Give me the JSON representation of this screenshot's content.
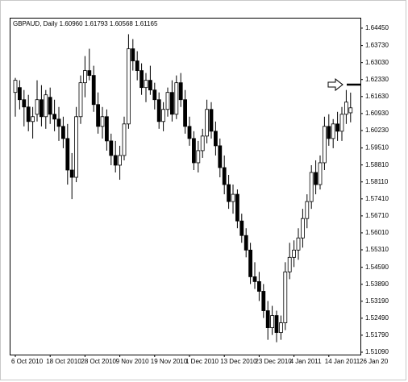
{
  "chart_data": {
    "type": "candlestick",
    "title": "GBPAUD, Daily 1.60960 1.61793 1.60568 1.61165",
    "categories": [
      "6 Oct 2010",
      null,
      null,
      null,
      null,
      null,
      null,
      null,
      "18 Oct 2010",
      null,
      null,
      null,
      null,
      null,
      null,
      null,
      "28 Oct 2010",
      null,
      null,
      null,
      null,
      null,
      null,
      null,
      "9 Nov 2010",
      null,
      null,
      null,
      null,
      null,
      null,
      null,
      "19 Nov 2010",
      null,
      null,
      null,
      null,
      null,
      null,
      null,
      "1 Dec 2010",
      null,
      null,
      null,
      null,
      null,
      null,
      null,
      "13 Dec 2010",
      null,
      null,
      null,
      null,
      null,
      null,
      null,
      "23 Dec 2010",
      null,
      null,
      null,
      null,
      null,
      null,
      null,
      "4 Jan 2011",
      null,
      null,
      null,
      null,
      null,
      null,
      null,
      "14 Jan 2011",
      null,
      null,
      null,
      null,
      null,
      null,
      null,
      "26 Jan 20"
    ],
    "open": [
      1.618,
      1.62,
      1.615,
      1.612,
      1.606,
      1.609,
      1.615,
      1.608,
      1.616,
      1.609,
      1.607,
      1.604,
      1.599,
      1.586,
      1.583,
      1.608,
      1.622,
      1.627,
      1.625,
      1.613,
      1.604,
      1.608,
      1.598,
      1.592,
      1.588,
      1.592,
      1.605,
      1.636,
      1.631,
      1.627,
      1.62,
      1.623,
      1.619,
      1.615,
      1.606,
      1.611,
      1.618,
      1.609,
      1.622,
      1.615,
      1.604,
      1.599,
      1.589,
      1.594,
      1.6,
      1.611,
      1.602,
      1.596,
      1.587,
      1.58,
      1.573,
      1.576,
      1.565,
      1.559,
      1.553,
      1.542,
      1.54,
      1.536,
      1.528,
      1.521,
      1.526,
      1.519,
      1.523,
      1.544,
      1.55,
      1.553,
      1.558,
      1.566,
      1.573,
      1.585,
      1.58,
      1.589,
      1.604,
      1.599,
      1.605,
      1.602,
      1.609,
      1.6096,
      null,
      null,
      null
    ],
    "high": [
      1.624,
      1.623,
      1.619,
      1.617,
      1.612,
      1.623,
      1.621,
      1.619,
      1.62,
      1.615,
      1.612,
      1.608,
      1.605,
      1.593,
      1.612,
      1.625,
      1.633,
      1.636,
      1.629,
      1.618,
      1.612,
      1.611,
      1.601,
      1.598,
      1.596,
      1.608,
      1.642,
      1.64,
      1.635,
      1.63,
      1.626,
      1.629,
      1.622,
      1.618,
      1.614,
      1.62,
      1.623,
      1.625,
      1.626,
      1.619,
      1.608,
      1.602,
      1.598,
      1.603,
      1.615,
      1.614,
      1.606,
      1.599,
      1.592,
      1.584,
      1.58,
      1.578,
      1.568,
      1.562,
      1.556,
      1.548,
      1.544,
      1.539,
      1.532,
      1.53,
      1.528,
      1.526,
      1.548,
      1.556,
      1.557,
      1.562,
      1.57,
      1.576,
      1.588,
      1.59,
      1.592,
      1.608,
      1.609,
      1.607,
      1.61,
      1.612,
      1.619,
      1.61793,
      null,
      null,
      null
    ],
    "low": [
      1.608,
      1.611,
      1.604,
      1.602,
      1.599,
      1.606,
      1.604,
      1.603,
      1.605,
      1.602,
      1.598,
      1.595,
      1.58,
      1.574,
      1.581,
      1.605,
      1.616,
      1.623,
      1.61,
      1.601,
      1.599,
      1.594,
      1.588,
      1.585,
      1.582,
      1.59,
      1.603,
      1.627,
      1.623,
      1.617,
      1.614,
      1.617,
      1.611,
      1.603,
      1.602,
      1.608,
      1.606,
      1.607,
      1.612,
      1.601,
      1.596,
      1.586,
      1.585,
      1.591,
      1.597,
      1.599,
      1.592,
      1.583,
      1.576,
      1.57,
      1.568,
      1.562,
      1.556,
      1.55,
      1.539,
      1.537,
      1.532,
      1.525,
      1.516,
      1.518,
      1.515,
      1.516,
      1.52,
      1.541,
      1.546,
      1.549,
      1.554,
      1.562,
      1.57,
      1.576,
      1.578,
      1.586,
      1.596,
      1.595,
      1.598,
      1.598,
      1.605,
      1.60568,
      null,
      null,
      null
    ],
    "close": [
      1.623,
      1.615,
      1.612,
      1.606,
      1.608,
      1.615,
      1.608,
      1.617,
      1.609,
      1.607,
      1.604,
      1.599,
      1.586,
      1.583,
      1.608,
      1.622,
      1.627,
      1.625,
      1.613,
      1.604,
      1.608,
      1.598,
      1.592,
      1.588,
      1.592,
      1.605,
      1.636,
      1.631,
      1.627,
      1.62,
      1.623,
      1.619,
      1.615,
      1.606,
      1.611,
      1.618,
      1.609,
      1.622,
      1.615,
      1.604,
      1.599,
      1.589,
      1.594,
      1.6,
      1.611,
      1.602,
      1.596,
      1.587,
      1.58,
      1.573,
      1.576,
      1.565,
      1.559,
      1.553,
      1.542,
      1.54,
      1.536,
      1.528,
      1.521,
      1.526,
      1.519,
      1.523,
      1.544,
      1.55,
      1.553,
      1.558,
      1.566,
      1.573,
      1.585,
      1.58,
      1.589,
      1.604,
      1.599,
      1.605,
      1.602,
      1.609,
      1.614,
      1.61165,
      null,
      null,
      null
    ],
    "up_color": "#ffffff",
    "down_color": "#000000",
    "marker_level": 1.6212,
    "ylim": [
      1.5099,
      1.6488
    ],
    "yticks": [
      {
        "value": 1.6445,
        "label": "1.64450"
      },
      {
        "value": 1.6373,
        "label": "1.63730"
      },
      {
        "value": 1.6303,
        "label": "1.63030"
      },
      {
        "value": 1.6233,
        "label": "1.62330"
      },
      {
        "value": 1.6163,
        "label": "1.61630"
      },
      {
        "value": 1.6093,
        "label": "1.60930"
      },
      {
        "value": 1.6023,
        "label": "1.60230"
      },
      {
        "value": 1.5951,
        "label": "1.59510"
      },
      {
        "value": 1.5881,
        "label": "1.58810"
      },
      {
        "value": 1.5811,
        "label": "1.58110"
      },
      {
        "value": 1.5741,
        "label": "1.57410"
      },
      {
        "value": 1.5671,
        "label": "1.56710"
      },
      {
        "value": 1.5601,
        "label": "1.56010"
      },
      {
        "value": 1.5531,
        "label": "1.55310"
      },
      {
        "value": 1.5459,
        "label": "1.54590"
      },
      {
        "value": 1.5389,
        "label": "1.53890"
      },
      {
        "value": 1.5319,
        "label": "1.53190"
      },
      {
        "value": 1.5249,
        "label": "1.52490"
      },
      {
        "value": 1.5179,
        "label": "1.51790"
      },
      {
        "value": 1.5109,
        "label": "1.51090"
      }
    ],
    "grid": false
  }
}
